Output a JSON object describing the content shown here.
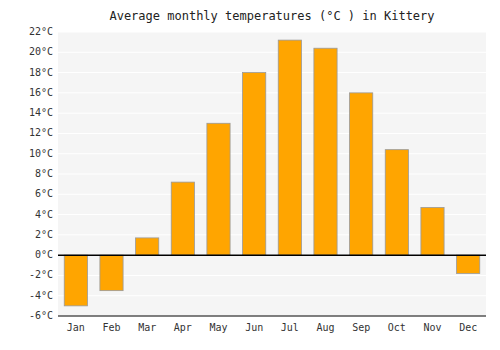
{
  "chart_data": {
    "type": "bar",
    "title": "Average monthly temperatures (°C ) in Kittery",
    "categories": [
      "Jan",
      "Feb",
      "Mar",
      "Apr",
      "May",
      "Jun",
      "Jul",
      "Aug",
      "Sep",
      "Oct",
      "Nov",
      "Dec"
    ],
    "values": [
      -5.0,
      -3.5,
      1.7,
      7.2,
      13.0,
      18.0,
      21.2,
      20.4,
      16.0,
      10.4,
      4.7,
      -1.8
    ],
    "color": "#FFA500",
    "ylim": [
      -6,
      22
    ],
    "yticks": [
      {
        "value": -6,
        "label": "-6°C"
      },
      {
        "value": -4,
        "label": "-4°C"
      },
      {
        "value": -2,
        "label": "-2°C"
      },
      {
        "value": 0,
        "label": "0°C"
      },
      {
        "value": 2,
        "label": "2°C"
      },
      {
        "value": 4,
        "label": "4°C"
      },
      {
        "value": 6,
        "label": "6°C"
      },
      {
        "value": 8,
        "label": "8°C"
      },
      {
        "value": 10,
        "label": "10°C"
      },
      {
        "value": 12,
        "label": "12°C"
      },
      {
        "value": 14,
        "label": "14°C"
      },
      {
        "value": 16,
        "label": "16°C"
      },
      {
        "value": 18,
        "label": "18°C"
      },
      {
        "value": 20,
        "label": "20°C"
      },
      {
        "value": 22,
        "label": "22°C"
      }
    ],
    "grid": true
  }
}
